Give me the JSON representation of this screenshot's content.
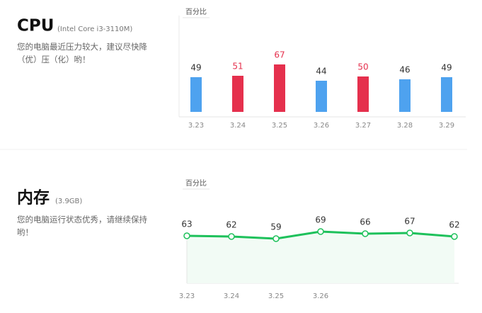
{
  "chart_data": [
    {
      "type": "bar",
      "title": "CPU",
      "subtitle": "(Intel Core i3-3110M)",
      "description": "您的电脑最近压力较大，建议尽快降（优）压（化）哟！",
      "ylabel": "百分比",
      "categories": [
        "3.23",
        "3.24",
        "3.25",
        "3.26",
        "3.27",
        "3.28",
        "3.29"
      ],
      "values": [
        49,
        51,
        67,
        44,
        50,
        46,
        49
      ],
      "colors": [
        "#4ea2ef",
        "#e5304d",
        "#e5304d",
        "#4ea2ef",
        "#e5304d",
        "#4ea2ef",
        "#4ea2ef"
      ],
      "ylim": [
        0,
        100
      ]
    },
    {
      "type": "line",
      "title": "内存",
      "subtitle": "(3.9GB)",
      "description": "您的电脑运行状态优秀，请继续保持哟！",
      "ylabel": "百分比",
      "categories": [
        "3.23",
        "3.24",
        "3.25",
        "3.26",
        null,
        null,
        null
      ],
      "values": [
        63,
        62,
        59,
        69,
        66,
        67,
        62
      ],
      "color": "#1ec15b",
      "ylim": [
        0,
        100
      ]
    }
  ]
}
